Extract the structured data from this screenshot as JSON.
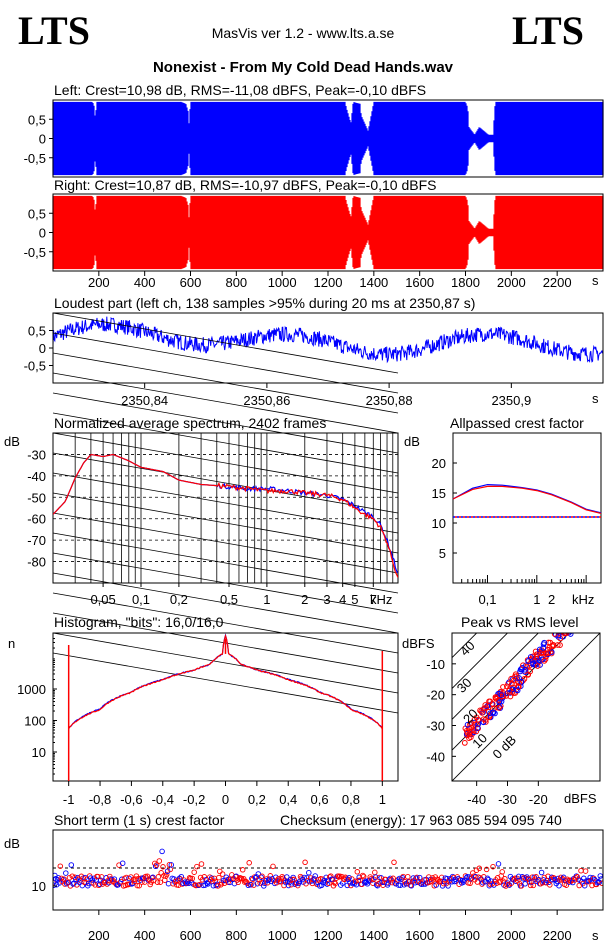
{
  "app": {
    "logo_left": "LTS",
    "logo_right": "LTS",
    "version": "MasVis ver 1.2 - www.lts.a.se",
    "file_title": "Nonexist - From My Cold Dead Hands.wav"
  },
  "colors": {
    "left": "#0000ff",
    "right": "#ff0000",
    "grid": "#000000"
  },
  "chart_data": [
    {
      "id": "left",
      "type": "area",
      "title": "Left: Crest=10,98 dB, RMS=-11,08 dBFS, Peak=-0,10 dBFS",
      "series": [
        {
          "name": "left channel",
          "color": "#0000ff"
        }
      ],
      "y_ticks": [
        "0,5",
        "0",
        "-0,5"
      ],
      "ylim": [
        -1,
        1
      ],
      "xlim": [
        0,
        2400
      ],
      "envelope_x": [
        0,
        15,
        20,
        100,
        105,
        170,
        178,
        185,
        190,
        520,
        560,
        580,
        590,
        590,
        600,
        640,
        650,
        900,
        1000,
        1100,
        1200,
        1275,
        1280,
        1300,
        1310,
        1340,
        1345,
        1375,
        1400,
        1460,
        1500,
        1540,
        1560,
        1800,
        1810,
        1815,
        1840,
        1860,
        1900,
        1920,
        1930,
        2150,
        2200,
        2300,
        2350,
        2400
      ],
      "envelope_y": [
        0.95,
        0.95,
        0.95,
        0.95,
        0.95,
        0.95,
        0.9,
        0.5,
        0.95,
        0.95,
        0.95,
        0.9,
        0.7,
        0.1,
        0.95,
        0.95,
        0.95,
        0.95,
        0.95,
        0.95,
        0.95,
        0.95,
        0.8,
        0.4,
        0.95,
        0.9,
        0.6,
        0.2,
        0.95,
        0.95,
        0.95,
        0.95,
        0.95,
        0.95,
        0.8,
        0.3,
        0.1,
        0.3,
        0.1,
        0.1,
        0.95,
        0.95,
        0.95,
        0.95,
        0.95,
        0.95
      ]
    },
    {
      "id": "right",
      "type": "area",
      "title": "Right: Crest=10,87 dB, RMS=-10,97 dBFS, Peak=-0,10 dBFS",
      "series": [
        {
          "name": "right channel",
          "color": "#ff0000"
        }
      ],
      "y_ticks": [
        "0,5",
        "0",
        "-0,5"
      ],
      "ylim": [
        -1,
        1
      ],
      "xlim": [
        0,
        2400
      ],
      "x_ticks": [
        "200",
        "400",
        "600",
        "800",
        "1000",
        "1200",
        "1400",
        "1600",
        "1800",
        "2000",
        "2200"
      ],
      "x_unit": "s"
    },
    {
      "id": "loudest",
      "type": "line",
      "title": "Loudest part (left  ch, 138 samples >95% during 20 ms at 2350,87 s)",
      "series": [
        {
          "name": "left channel",
          "color": "#0000ff"
        }
      ],
      "y_ticks": [
        "0,5",
        "0",
        "-0,5"
      ],
      "ylim": [
        -1,
        1
      ],
      "xlim": [
        2350.825,
        2350.915
      ],
      "x_ticks": [
        "2350,84",
        "2350,86",
        "2350,88",
        "2350,9"
      ],
      "x_unit": "s"
    },
    {
      "id": "spectrum",
      "type": "line",
      "title": "Normalized average spectrum, 2402 frames",
      "ylabel": "dB",
      "y_ticks": [
        "-30",
        "-40",
        "-50",
        "-60",
        "-70",
        "-80"
      ],
      "ylim": [
        -90,
        -20
      ],
      "x_ticks": [
        "0,05",
        "0,1",
        "0,2",
        "0,5",
        "1",
        "2",
        "3",
        "4",
        "5",
        "7"
      ],
      "x_unit": "kHz",
      "xscale": "log",
      "x": [
        0.02,
        0.025,
        0.03,
        0.035,
        0.04,
        0.05,
        0.06,
        0.08,
        0.1,
        0.15,
        0.2,
        0.3,
        0.5,
        0.7,
        1,
        1.5,
        2,
        3,
        4,
        5,
        6,
        7,
        8,
        9,
        10,
        11
      ],
      "series": [
        {
          "name": "left",
          "color": "#0000ff",
          "values": [
            -58,
            -52,
            -41,
            -34,
            -30,
            -31,
            -30,
            -33,
            -36,
            -38,
            -42,
            -44,
            -45,
            -46,
            -46,
            -47,
            -48,
            -49,
            -51,
            -54,
            -57,
            -59,
            -63,
            -70,
            -78,
            -86
          ]
        },
        {
          "name": "right",
          "color": "#ff0000",
          "values": [
            -58,
            -52,
            -41,
            -34,
            -30,
            -31,
            -30,
            -33,
            -36,
            -38,
            -42,
            -44,
            -45,
            -46,
            -47,
            -47,
            -48,
            -49,
            -51,
            -55,
            -58,
            -60,
            -64,
            -71,
            -80,
            -88
          ]
        }
      ]
    },
    {
      "id": "crest",
      "type": "line",
      "title": "Allpassed crest factor",
      "ylabel": "dB",
      "y_ticks": [
        "20",
        "15",
        "10",
        "5"
      ],
      "ylim": [
        0,
        25
      ],
      "x_ticks": [
        "0,1",
        "1",
        "2"
      ],
      "x_unit": "kHz",
      "xscale": "log",
      "x": [
        0.02,
        0.05,
        0.1,
        0.2,
        0.5,
        1,
        2,
        5,
        10,
        20
      ],
      "series": [
        {
          "name": "left",
          "color": "#0000ff",
          "values": [
            14,
            15.8,
            16.4,
            16.3,
            15.9,
            15.5,
            14.8,
            13.5,
            12.3,
            11.7
          ]
        },
        {
          "name": "right",
          "color": "#ff0000",
          "values": [
            14,
            15.6,
            16.1,
            16.1,
            15.8,
            15.4,
            14.7,
            13.4,
            12.2,
            11.6
          ]
        }
      ],
      "reference": 11
    },
    {
      "id": "histogram",
      "type": "line",
      "title": "Histogram, \"bits\": 16,0/16,0",
      "ylabel": "n",
      "y_ticks": [
        "1000",
        "100",
        "10"
      ],
      "xlim": [
        -1.1,
        1.1
      ],
      "x_ticks": [
        "-1",
        "-0,8",
        "-0,6",
        "-0,4",
        "-0,2",
        "0",
        "0,2",
        "0,4",
        "0,6",
        "0,8",
        "1"
      ],
      "yscale": "log",
      "x": [
        -1,
        -0.8,
        -0.6,
        -0.4,
        -0.2,
        -0.1,
        -0.02,
        0,
        0.02,
        0.1,
        0.2,
        0.4,
        0.6,
        0.8,
        1
      ],
      "series": [
        {
          "name": "left",
          "color": "#0000ff",
          "values": [
            55,
            230,
            800,
            2000,
            4000,
            6000,
            13000,
            50000,
            13000,
            6000,
            4000,
            2000,
            800,
            230,
            55
          ]
        },
        {
          "name": "right",
          "color": "#ff0000",
          "values": [
            55,
            220,
            780,
            1950,
            3950,
            6000,
            13000,
            50000,
            13000,
            6000,
            3950,
            1950,
            780,
            220,
            55
          ]
        }
      ]
    },
    {
      "id": "peak_rms",
      "type": "scatter",
      "title": "Peak vs RMS level",
      "ylabel": "dBFS",
      "y_ticks": [
        "-10",
        "-20",
        "-30",
        "-40"
      ],
      "x_ticks": [
        "-40",
        "-30",
        "-20"
      ],
      "x_unit": "dBFS",
      "xlim": [
        -48,
        0
      ],
      "ylim": [
        -48,
        0
      ],
      "diagonal_labels": [
        "40",
        "30",
        "20",
        "10",
        "0 dB"
      ]
    },
    {
      "id": "short_term",
      "type": "scatter",
      "title": "Short term (1 s) crest factor",
      "ylabel": "dB",
      "y_ticks": [
        "10"
      ],
      "xlim": [
        0,
        2400
      ],
      "x_ticks": [
        "200",
        "400",
        "600",
        "800",
        "1000",
        "1200",
        "1400",
        "1600",
        "1800",
        "2000",
        "2200"
      ],
      "x_unit": "s"
    }
  ],
  "checksum": "Checksum (energy):  17 963 085 594 095 740"
}
